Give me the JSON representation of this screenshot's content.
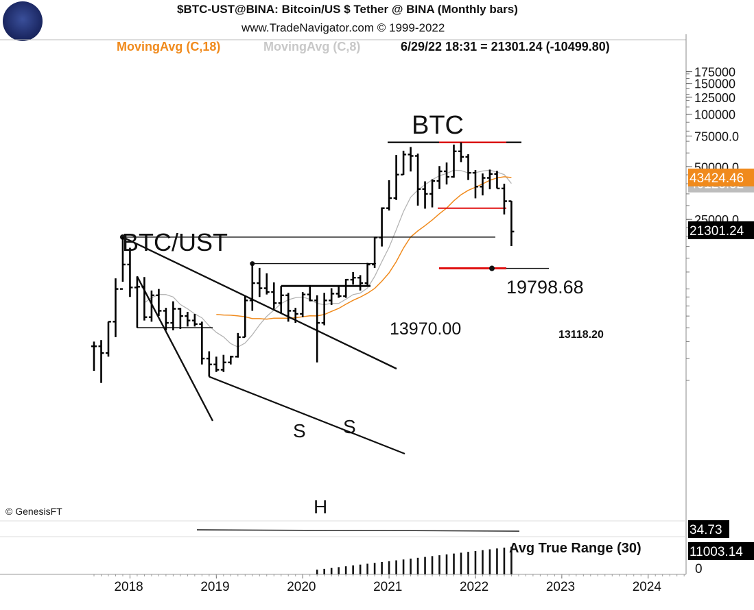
{
  "header": {
    "title": "$BTC-UST@BINA:  Bitcoin/US $ Tether @ BINA  (Monthly bars)",
    "website": "www.TradeNavigator.com © 1999-2022",
    "ma18_label": "MovingAvg (C,18)",
    "ma8_label": "MovingAvg (C,8)",
    "readout": "6/29/22 18:31 = 21301.24 (-10499.80)",
    "copyright": "© GenesisFT"
  },
  "colors": {
    "ma18": "#f08a1c",
    "ma8": "#b4b4b4",
    "bars": "#000000",
    "resistance_red": "#e01010",
    "price_tag_bg": "#000000",
    "ma_tag_orange": "#f08a1c",
    "ma_tag_gray": "#bdbdbd"
  },
  "logo_icon": "sextant-icon",
  "chart_data": {
    "type": "ohlc",
    "scale": "log",
    "ylim": [
      2900,
      180000
    ],
    "x_ticks": [
      "2018",
      "2019",
      "2020",
      "2021",
      "2022",
      "2023",
      "2024"
    ],
    "y_ticks": [
      "175000",
      "150000",
      "125000",
      "100000",
      "75000.0",
      "50000.0",
      "25000.0"
    ],
    "tags": {
      "last_price": "21301.24",
      "ma18_value": "43424.46",
      "ma8_value": "40123.52"
    },
    "bars": [
      {
        "d": "2017-08",
        "o": 4700,
        "h": 5000,
        "l": 3400,
        "c": 4700
      },
      {
        "d": "2017-09",
        "o": 4700,
        "h": 5100,
        "l": 2900,
        "c": 4300
      },
      {
        "d": "2017-10",
        "o": 4300,
        "h": 6500,
        "l": 4100,
        "c": 6500
      },
      {
        "d": "2017-11",
        "o": 6500,
        "h": 11500,
        "l": 5300,
        "c": 10000
      },
      {
        "d": "2017-12",
        "o": 10000,
        "h": 19798.68,
        "l": 11000,
        "c": 13800
      },
      {
        "d": "2018-01",
        "o": 13800,
        "h": 17200,
        "l": 9000,
        "c": 10200
      },
      {
        "d": "2018-02",
        "o": 10200,
        "h": 11800,
        "l": 6000,
        "c": 10300
      },
      {
        "d": "2018-03",
        "o": 10300,
        "h": 11700,
        "l": 6600,
        "c": 6900
      },
      {
        "d": "2018-04",
        "o": 6900,
        "h": 9800,
        "l": 6500,
        "c": 9200
      },
      {
        "d": "2018-05",
        "o": 9200,
        "h": 10000,
        "l": 7000,
        "c": 7500
      },
      {
        "d": "2018-06",
        "o": 7500,
        "h": 7800,
        "l": 5800,
        "c": 6400
      },
      {
        "d": "2018-07",
        "o": 6400,
        "h": 8500,
        "l": 5800,
        "c": 7700
      },
      {
        "d": "2018-08",
        "o": 7700,
        "h": 7800,
        "l": 5900,
        "c": 7000
      },
      {
        "d": "2018-09",
        "o": 7000,
        "h": 7400,
        "l": 6100,
        "c": 6600
      },
      {
        "d": "2018-10",
        "o": 6600,
        "h": 7200,
        "l": 6100,
        "c": 6300
      },
      {
        "d": "2018-11",
        "o": 6300,
        "h": 6500,
        "l": 3700,
        "c": 4000
      },
      {
        "d": "2018-12",
        "o": 4000,
        "h": 4400,
        "l": 3150,
        "c": 3700
      },
      {
        "d": "2019-01",
        "o": 3700,
        "h": 4100,
        "l": 3350,
        "c": 3450
      },
      {
        "d": "2019-02",
        "o": 3450,
        "h": 4200,
        "l": 3350,
        "c": 3800
      },
      {
        "d": "2019-03",
        "o": 3800,
        "h": 4150,
        "l": 3700,
        "c": 4100
      },
      {
        "d": "2019-04",
        "o": 4100,
        "h": 5600,
        "l": 4050,
        "c": 5300
      },
      {
        "d": "2019-05",
        "o": 5300,
        "h": 9100,
        "l": 5300,
        "c": 8600
      },
      {
        "d": "2019-06",
        "o": 8600,
        "h": 13970,
        "l": 7500,
        "c": 10800
      },
      {
        "d": "2019-07",
        "o": 10800,
        "h": 13200,
        "l": 9000,
        "c": 10100
      },
      {
        "d": "2019-08",
        "o": 10100,
        "h": 12300,
        "l": 9300,
        "c": 9600
      },
      {
        "d": "2019-09",
        "o": 9600,
        "h": 10900,
        "l": 7700,
        "c": 8300
      },
      {
        "d": "2019-10",
        "o": 8300,
        "h": 10400,
        "l": 7300,
        "c": 9200
      },
      {
        "d": "2019-11",
        "o": 9200,
        "h": 9500,
        "l": 6500,
        "c": 7500
      },
      {
        "d": "2019-12",
        "o": 7500,
        "h": 7800,
        "l": 6400,
        "c": 7200
      },
      {
        "d": "2020-01",
        "o": 7200,
        "h": 9600,
        "l": 6900,
        "c": 9300
      },
      {
        "d": "2020-02",
        "o": 9300,
        "h": 10500,
        "l": 8500,
        "c": 8600
      },
      {
        "d": "2020-03",
        "o": 8600,
        "h": 9200,
        "l": 3800,
        "c": 6400
      },
      {
        "d": "2020-04",
        "o": 6400,
        "h": 9500,
        "l": 6200,
        "c": 8600
      },
      {
        "d": "2020-05",
        "o": 8600,
        "h": 10100,
        "l": 8100,
        "c": 9400
      },
      {
        "d": "2020-06",
        "o": 9400,
        "h": 10400,
        "l": 8900,
        "c": 9100
      },
      {
        "d": "2020-07",
        "o": 9100,
        "h": 11400,
        "l": 8900,
        "c": 11300
      },
      {
        "d": "2020-08",
        "o": 11300,
        "h": 12500,
        "l": 10600,
        "c": 11600
      },
      {
        "d": "2020-09",
        "o": 11600,
        "h": 12000,
        "l": 9800,
        "c": 10800
      },
      {
        "d": "2020-10",
        "o": 10800,
        "h": 14100,
        "l": 10400,
        "c": 13800
      },
      {
        "d": "2020-11",
        "o": 13800,
        "h": 19900,
        "l": 13200,
        "c": 19700
      },
      {
        "d": "2020-12",
        "o": 19700,
        "h": 29300,
        "l": 17500,
        "c": 29000
      },
      {
        "d": "2021-01",
        "o": 29000,
        "h": 41900,
        "l": 28100,
        "c": 33100
      },
      {
        "d": "2021-02",
        "o": 33100,
        "h": 58400,
        "l": 32300,
        "c": 45100
      },
      {
        "d": "2021-03",
        "o": 45100,
        "h": 61800,
        "l": 45000,
        "c": 58800
      },
      {
        "d": "2021-04",
        "o": 58800,
        "h": 64900,
        "l": 47000,
        "c": 57700
      },
      {
        "d": "2021-05",
        "o": 57700,
        "h": 59500,
        "l": 30000,
        "c": 37300
      },
      {
        "d": "2021-06",
        "o": 37300,
        "h": 41300,
        "l": 28800,
        "c": 35000
      },
      {
        "d": "2021-07",
        "o": 35000,
        "h": 42400,
        "l": 29300,
        "c": 41500
      },
      {
        "d": "2021-08",
        "o": 41500,
        "h": 50500,
        "l": 37300,
        "c": 47100
      },
      {
        "d": "2021-09",
        "o": 47100,
        "h": 52900,
        "l": 39600,
        "c": 43800
      },
      {
        "d": "2021-10",
        "o": 43800,
        "h": 67000,
        "l": 43300,
        "c": 61300
      },
      {
        "d": "2021-11",
        "o": 61300,
        "h": 69000,
        "l": 53200,
        "c": 57000
      },
      {
        "d": "2021-12",
        "o": 57000,
        "h": 59000,
        "l": 42000,
        "c": 46200
      },
      {
        "d": "2022-01",
        "o": 46200,
        "h": 47900,
        "l": 33000,
        "c": 38500
      },
      {
        "d": "2022-02",
        "o": 38500,
        "h": 45800,
        "l": 34300,
        "c": 43200
      },
      {
        "d": "2022-03",
        "o": 43200,
        "h": 48200,
        "l": 37200,
        "c": 45500
      },
      {
        "d": "2022-04",
        "o": 45500,
        "h": 47400,
        "l": 37600,
        "c": 37600
      },
      {
        "d": "2022-05",
        "o": 37600,
        "h": 40000,
        "l": 26700,
        "c": 31800
      },
      {
        "d": "2022-06",
        "o": 31800,
        "h": 31900,
        "l": 17600,
        "c": 21301.24
      }
    ],
    "annotations": {
      "btc": "BTC",
      "btc_ust": "BTC/UST",
      "h": "H",
      "s_left": "S",
      "s_right": "S",
      "level_19798": "19798.68",
      "level_13970": "13970.00",
      "level_13118": "13118.20"
    },
    "levels": {
      "top": 69000,
      "mid_red": 29000,
      "low_red": 13118.2
    },
    "atr": {
      "label": "Avg True Range (30)",
      "value_tag": "11003.14",
      "upper_tag": "34.73",
      "zero_tag": "0"
    }
  }
}
